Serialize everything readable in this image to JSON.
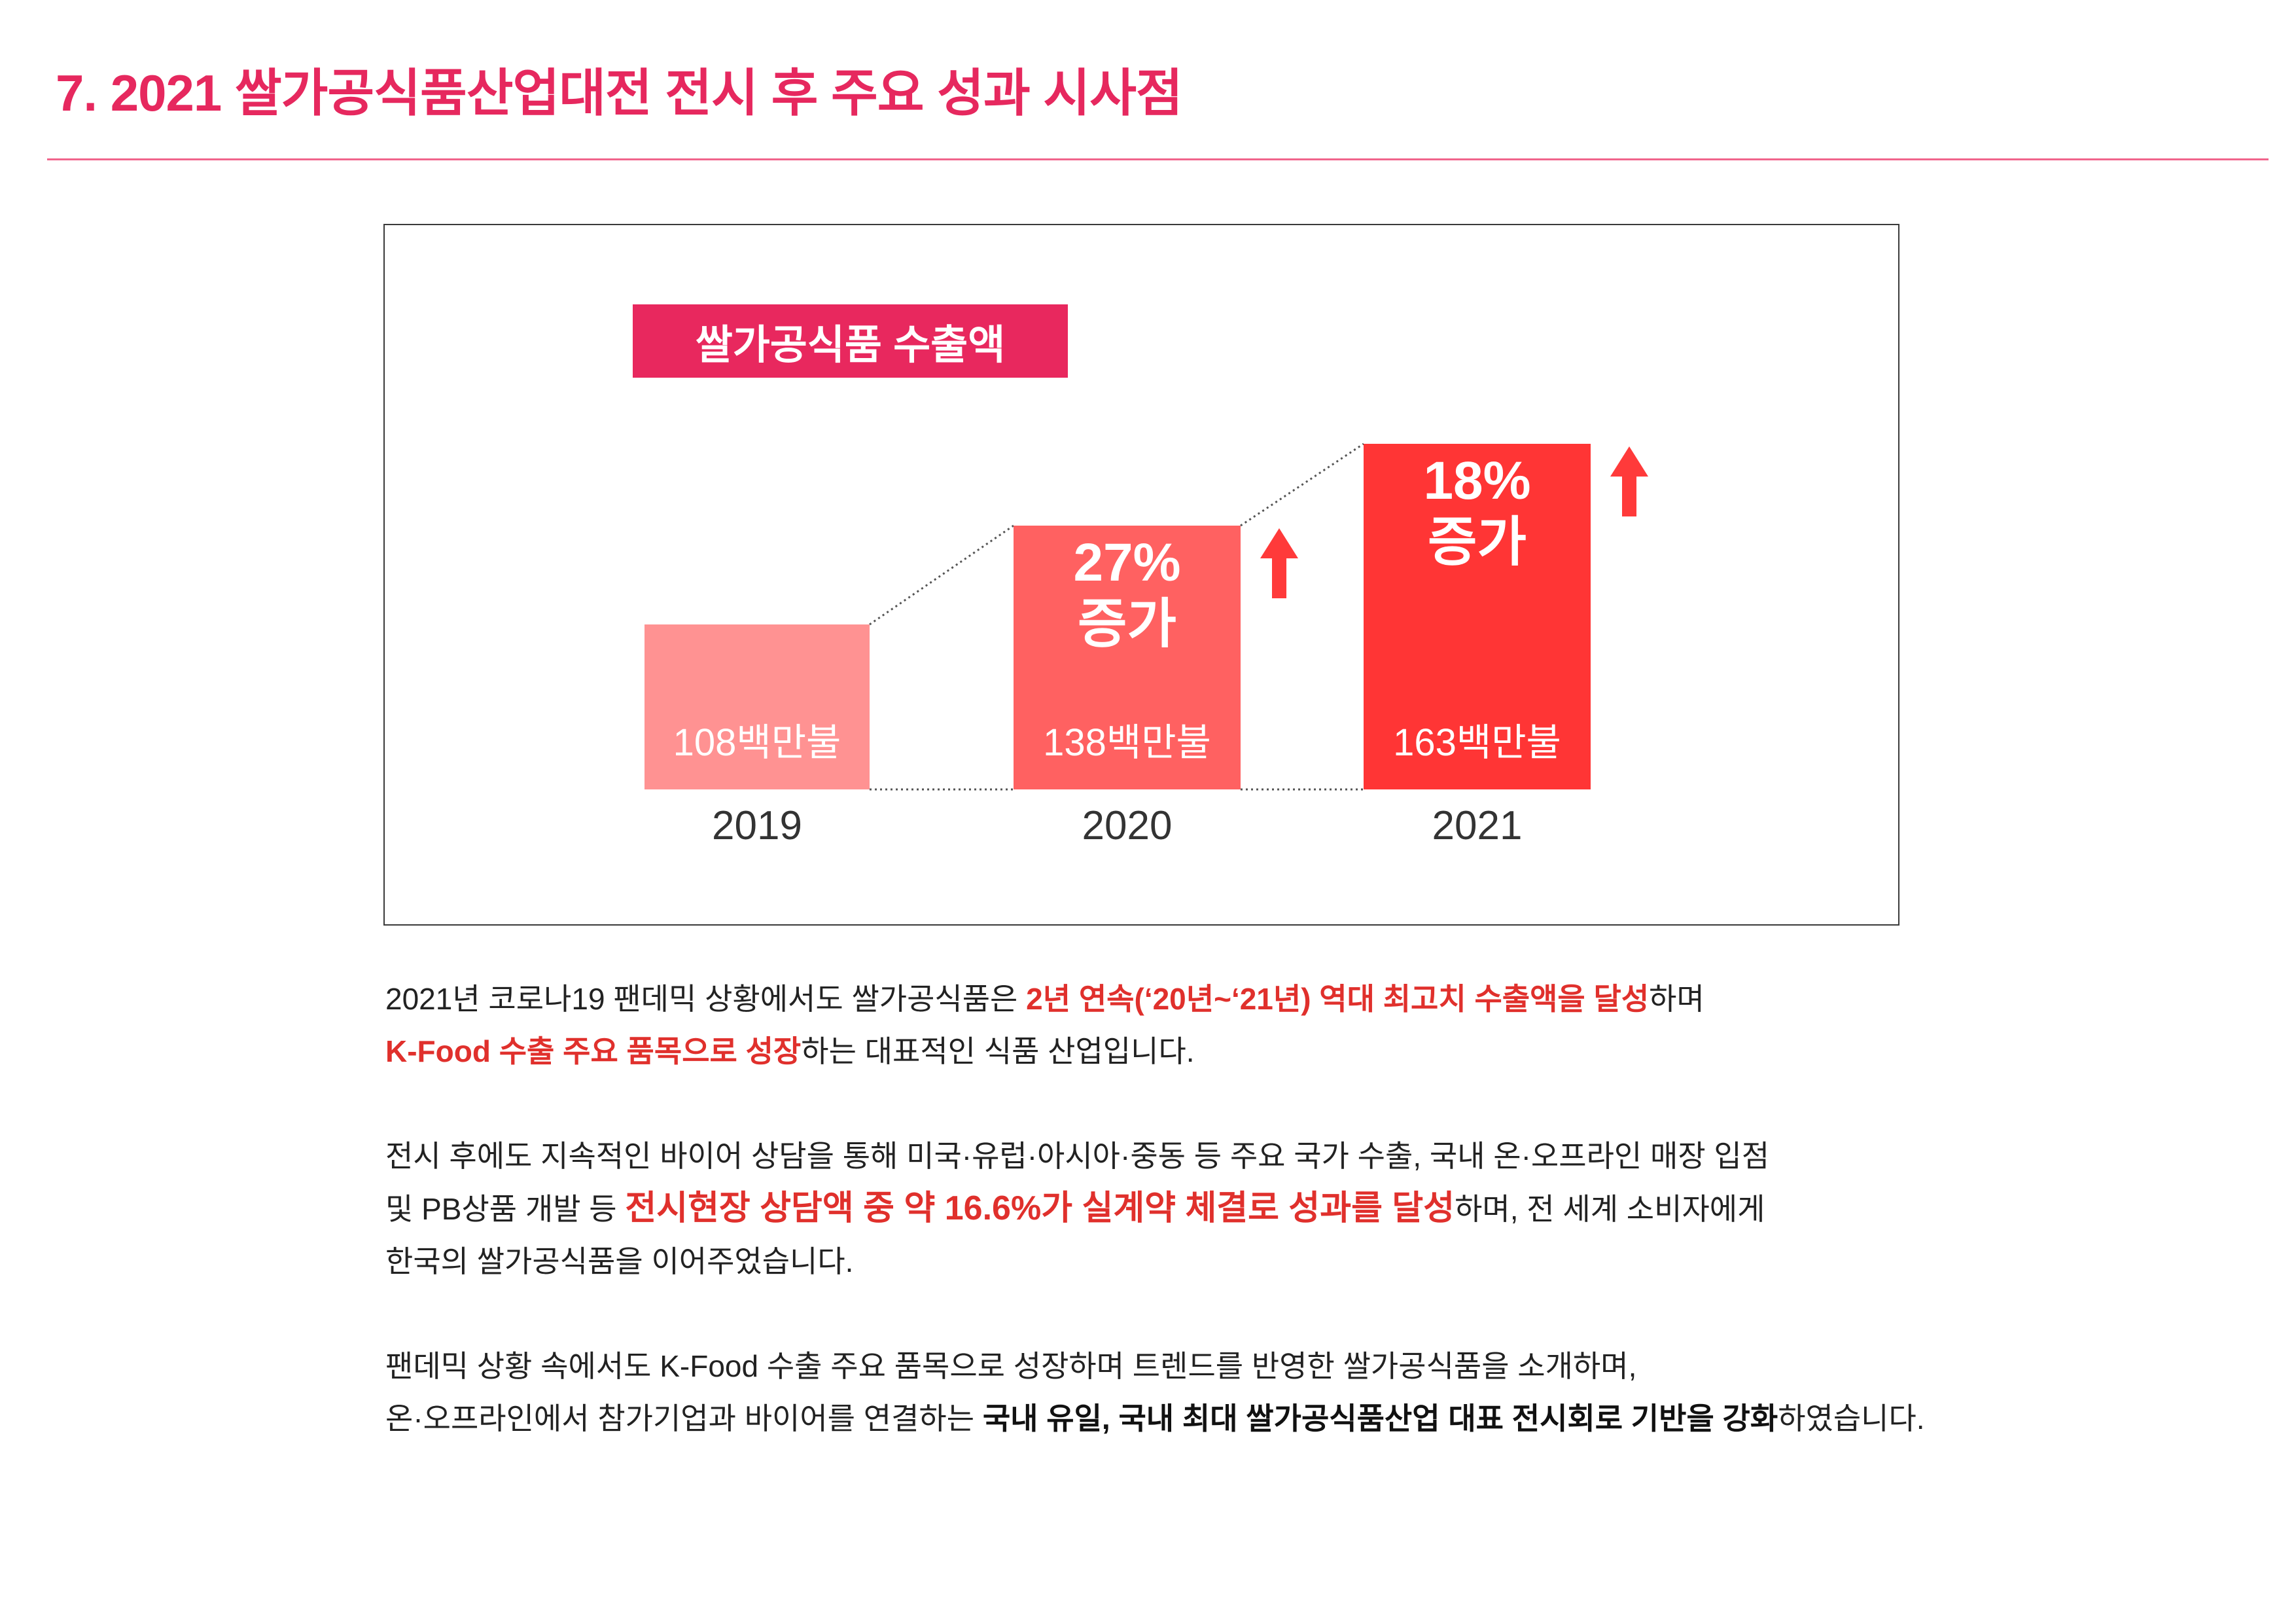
{
  "page": {
    "title": "7. 2021 쌀가공식품산업대전 전시 후 주요 성과 시사점"
  },
  "colors": {
    "title": "#E6285E",
    "divider": "#F0648C",
    "badge": "#E8285E",
    "emphasis_red": "#E0302C",
    "text": "#222222",
    "chart_border": "#3A3A3A",
    "connector": "#555555"
  },
  "chart_data": {
    "type": "bar",
    "title": "쌀가공식품 수출액",
    "categories": [
      "2019",
      "2020",
      "2021"
    ],
    "values": [
      108,
      138,
      163
    ],
    "value_labels": [
      "108백만불",
      "138백만불",
      "163백만불"
    ],
    "annotations": [
      null,
      {
        "percent": "27%",
        "text": "증가"
      },
      {
        "percent": "18%",
        "text": "증가"
      }
    ],
    "bar_colors": [
      "#FF9292",
      "#FF6161",
      "#FF3535"
    ],
    "arrow_color": "#FF3A3A",
    "grid": false
  },
  "body": {
    "p1": [
      [
        "2021년 코로나19 팬데믹 상황에서도 쌀가공식품은 ",
        "2년 연속(‘20년~‘21년) 역대 최고치 수출액을 달성",
        "하며"
      ],
      [
        "K-Food 수출 주요 품목으로 성장",
        "하는 대표적인 식품 산업입니다."
      ]
    ],
    "p2": [
      [
        "전시 후에도 지속적인 바이어 상담을 통해 미국·유럽·아시아·중동 등 주요 국가 수출, 국내 온·오프라인 매장 입점"
      ],
      [
        "및 PB상품 개발 등 ",
        "전시현장 상담액 중 약 16.6%가 실계약 체결로 성과를 달성",
        "하며, 전 세계 소비자에게"
      ],
      [
        "한국의 쌀가공식품을 이어주었습니다."
      ]
    ],
    "p3": [
      [
        "팬데믹 상황 속에서도 K-Food 수출 주요 품목으로 성장하며 트렌드를 반영한 쌀가공식품을 소개하며,"
      ],
      [
        "온·오프라인에서 참가기업과 바이어를 연결하는 ",
        "국내 유일, 국내 최대 쌀가공식품산업 대표 전시회로 기반을 강화",
        "하였습니다."
      ]
    ]
  }
}
